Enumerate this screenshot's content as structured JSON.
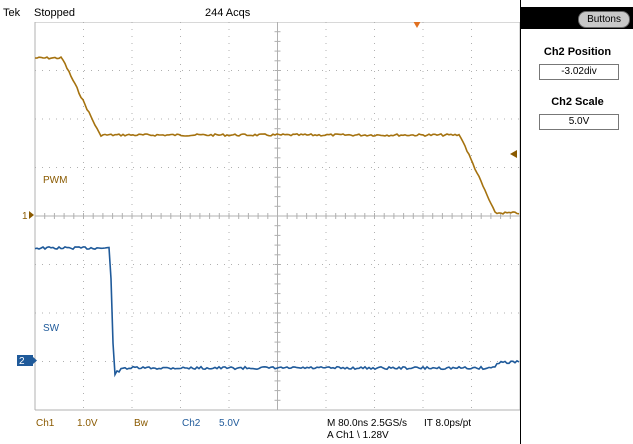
{
  "header": {
    "brand": "Tek",
    "state": "Stopped",
    "acquisitions": "244 Acqs"
  },
  "traces": {
    "ch1_label": "PWM",
    "ch2_label": "SW",
    "ch1_marker": "1",
    "ch2_marker": "2"
  },
  "footer": {
    "ch1_name": "Ch1",
    "ch1_scale": "1.0V",
    "bw_label": "Bw",
    "ch2_name": "Ch2",
    "ch2_scale": "5.0V",
    "timebase": "M 80.0ns 2.5GS/s",
    "record": "IT 8.0ps/pt",
    "trigger": "A  Ch1  \\  1.28V"
  },
  "side_panel": {
    "button_label": "Buttons",
    "position_title": "Ch2 Position",
    "position_value": "-3.02div",
    "scale_title": "Ch2 Scale",
    "scale_value": "5.0V"
  },
  "colors": {
    "ch1": "#a5720f",
    "ch2": "#1f5a9a",
    "grid": "#b0b0b0",
    "marker_ch2_bg": "#1f5a9a",
    "trigger_marker": "#e07020"
  }
}
